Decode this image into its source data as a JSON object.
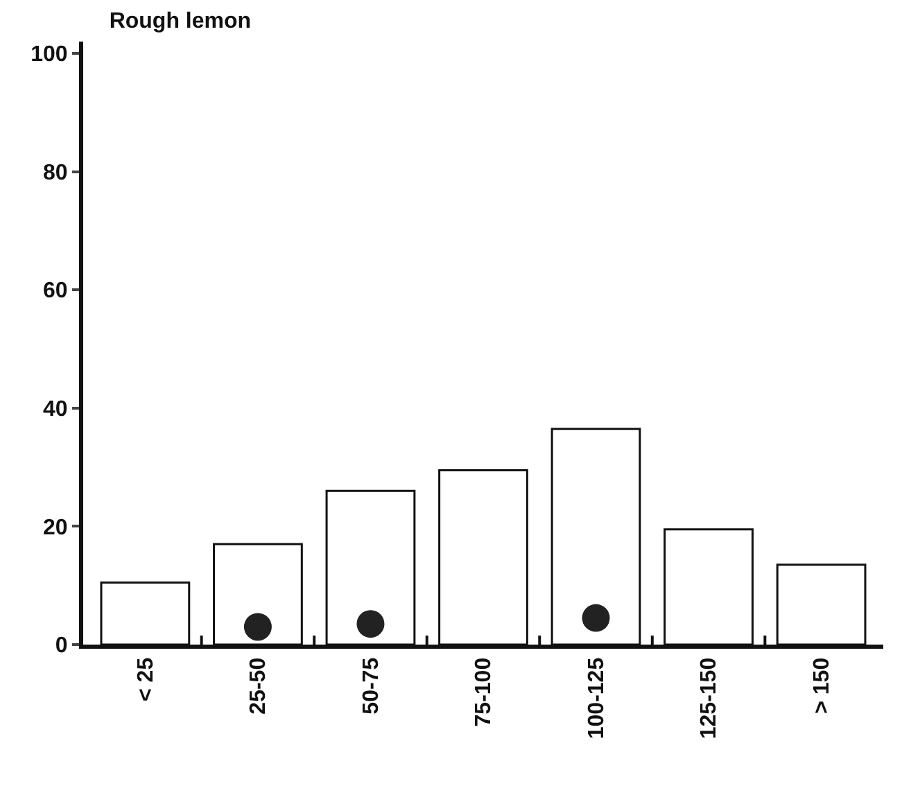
{
  "chart_data": {
    "type": "bar",
    "title": "Rough lemon",
    "categories": [
      "< 25",
      "25-50",
      "50-75",
      "75-100",
      "100-125",
      "125-150",
      "> 150"
    ],
    "series": [
      {
        "color": "#ffffff",
        "values": [
          10.5,
          17,
          26,
          29.5,
          36.5,
          19.5,
          13.5
        ]
      },
      {
        "type": "scatter",
        "color": "#222222",
        "values": [
          null,
          3,
          3.5,
          null,
          4.5,
          null,
          null
        ]
      }
    ],
    "ylim": [
      0,
      102
    ],
    "yticks": [
      0,
      20,
      40,
      60,
      80,
      100
    ],
    "grid": false,
    "legend": false,
    "marker": "circle"
  }
}
